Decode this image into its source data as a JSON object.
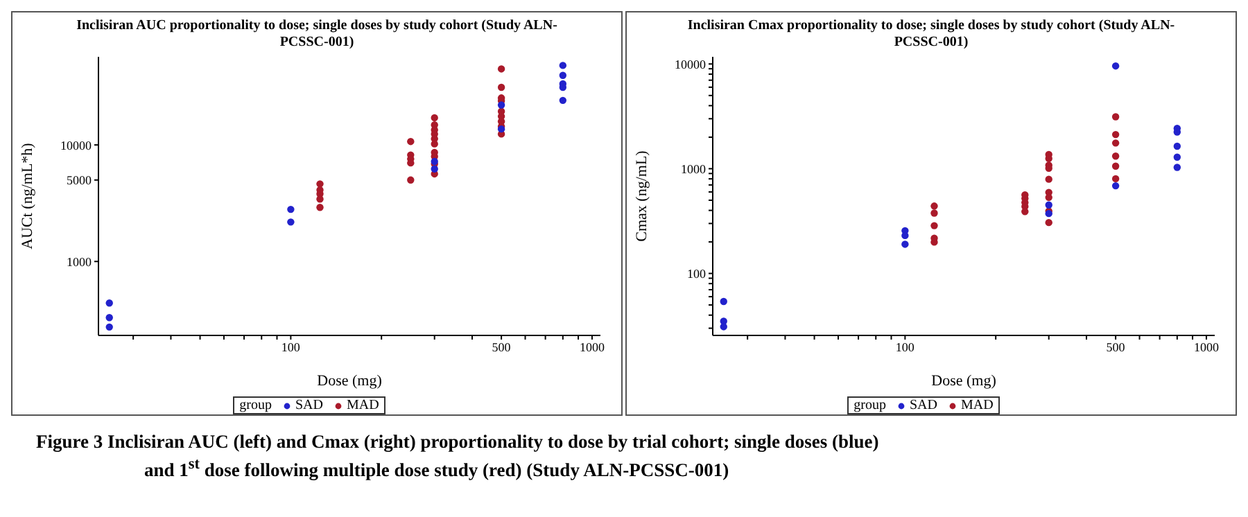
{
  "chart_data": [
    {
      "type": "scatter",
      "title": "Inclisiran AUC proportionality to dose; single doses by study cohort (Study ALN-PCSSC-001)",
      "xlabel": "Dose (mg)",
      "ylabel": "AUCt (ng/mL*h)",
      "legend_title": "group",
      "legend": "bottom",
      "log": "xy",
      "marker": "circle",
      "grid": false,
      "xlim": [
        23,
        1066
      ],
      "xticks": [
        {
          "value": 30,
          "label": null
        },
        {
          "value": 40,
          "label": null
        },
        {
          "value": 50,
          "label": null
        },
        {
          "value": 60,
          "label": null
        },
        {
          "value": 70,
          "label": null
        },
        {
          "value": 80,
          "label": null
        },
        {
          "value": 90,
          "label": null
        },
        100,
        {
          "value": 200,
          "label": null
        },
        {
          "value": 300,
          "label": null
        },
        {
          "value": 400,
          "label": null
        },
        500,
        {
          "value": 600,
          "label": null
        },
        {
          "value": 700,
          "label": null
        },
        {
          "value": 800,
          "label": null
        },
        {
          "value": 900,
          "label": null
        },
        1000
      ],
      "ylim": [
        232,
        57000
      ],
      "yticks": [
        1000,
        5000,
        10000
      ],
      "series": [
        {
          "name": "SAD",
          "color": "#2222cc",
          "x": [
            25,
            25,
            25,
            100,
            100,
            300,
            300,
            500,
            500,
            800,
            800,
            800,
            800,
            800
          ],
          "values": [
            440,
            330,
            274,
            2800,
            2180,
            7210,
            6220,
            22000,
            13700,
            48100,
            39500,
            33400,
            31200,
            24100
          ]
        },
        {
          "name": "MAD",
          "color": "#aa1a2a",
          "x": [
            125,
            125,
            125,
            125,
            125,
            250,
            250,
            250,
            250,
            250,
            300,
            300,
            300,
            300,
            300,
            300,
            300,
            300,
            300,
            300,
            500,
            500,
            500,
            500,
            500,
            500,
            500,
            500,
            500
          ],
          "values": [
            4630,
            4110,
            3800,
            3430,
            2910,
            10700,
            8200,
            7580,
            7000,
            5000,
            17100,
            14850,
            13450,
            12400,
            11300,
            10200,
            8630,
            7960,
            6870,
            5640,
            44900,
            31200,
            25300,
            23900,
            19400,
            17600,
            15900,
            14400,
            12400
          ]
        }
      ],
      "annotations": [
        "Figure 3  Inclisiran AUC (left) and Cmax (right) proportionality to dose by trial cohort; single doses (blue) and 1$^{st}$ dose following multiple dose study (red) (Study ALN-PCSSC-001)"
      ]
    },
    {
      "type": "scatter",
      "title": "Inclisiran Cmax proportionality to dose; single doses by study cohort (Study ALN-PCSSC-001)",
      "xlabel": "Dose (mg)",
      "ylabel": "Cmax (ng/mL)",
      "legend_title": "group",
      "legend": "bottom",
      "log": "xy",
      "marker": "circle",
      "grid": false,
      "xlim": [
        23,
        1066
      ],
      "xticks": [
        {
          "value": 30,
          "label": null
        },
        {
          "value": 40,
          "label": null
        },
        {
          "value": 50,
          "label": null
        },
        {
          "value": 60,
          "label": null
        },
        {
          "value": 70,
          "label": null
        },
        {
          "value": 80,
          "label": null
        },
        {
          "value": 90,
          "label": null
        },
        100,
        {
          "value": 200,
          "label": null
        },
        {
          "value": 300,
          "label": null
        },
        {
          "value": 400,
          "label": null
        },
        500,
        {
          "value": 600,
          "label": null
        },
        {
          "value": 700,
          "label": null
        },
        {
          "value": 800,
          "label": null
        },
        {
          "value": 900,
          "label": null
        },
        1000
      ],
      "ylim": [
        25.6,
        11700
      ],
      "yticks": [
        {
          "value": 30,
          "label": null
        },
        {
          "value": 40,
          "label": null
        },
        {
          "value": 50,
          "label": null
        },
        {
          "value": 60,
          "label": null
        },
        {
          "value": 70,
          "label": null
        },
        {
          "value": 80,
          "label": null
        },
        {
          "value": 90,
          "label": null
        },
        100,
        {
          "value": 200,
          "label": null
        },
        {
          "value": 300,
          "label": null
        },
        {
          "value": 400,
          "label": null
        },
        {
          "value": 500,
          "label": null
        },
        {
          "value": 600,
          "label": null
        },
        {
          "value": 700,
          "label": null
        },
        {
          "value": 800,
          "label": null
        },
        {
          "value": 900,
          "label": null
        },
        1000,
        {
          "value": 2000,
          "label": null
        },
        {
          "value": 3000,
          "label": null
        },
        {
          "value": 4000,
          "label": null
        },
        {
          "value": 5000,
          "label": null
        },
        {
          "value": 6000,
          "label": null
        },
        {
          "value": 7000,
          "label": null
        },
        {
          "value": 8000,
          "label": null
        },
        {
          "value": 9000,
          "label": null
        },
        10000
      ],
      "series": [
        {
          "name": "SAD",
          "color": "#2222cc",
          "x": [
            25,
            25,
            25,
            100,
            100,
            100,
            300,
            300,
            500,
            500,
            800,
            800,
            800,
            800,
            800
          ],
          "values": [
            54,
            35,
            31,
            256,
            230,
            190,
            451,
            373,
            9570,
            687,
            2430,
            2240,
            1640,
            1290,
            1030
          ]
        },
        {
          "name": "MAD",
          "color": "#aa1a2a",
          "x": [
            125,
            125,
            125,
            125,
            125,
            250,
            250,
            250,
            250,
            250,
            300,
            300,
            300,
            300,
            300,
            300,
            300,
            300,
            300,
            500,
            500,
            500,
            500,
            500,
            500
          ],
          "values": [
            440,
            377,
            286,
            217,
            199,
            562,
            520,
            476,
            436,
            390,
            1365,
            1250,
            1080,
            1010,
            793,
            594,
            532,
            394,
            306,
            3130,
            2120,
            1760,
            1320,
            1057,
            802
          ]
        }
      ]
    }
  ]
}
